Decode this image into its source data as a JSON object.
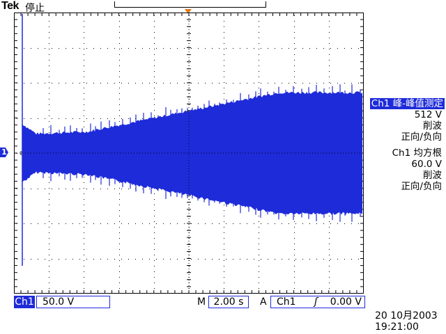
{
  "header": {
    "brand": "Tek",
    "status": "停止"
  },
  "measurements": [
    {
      "title": "Ch1 峰-峰值测定",
      "value": "512 V",
      "note1": "削波",
      "note2": "正向/负向"
    },
    {
      "title": "Ch1 均方根",
      "value": "60.0 V",
      "note1": "削波",
      "note2": "正向/负向"
    }
  ],
  "channel_marker": "1",
  "bottom_bar": {
    "channel": "Ch1",
    "volts_per_div": "50.0 V",
    "timebase_label": "M",
    "timebase": "2.00 s",
    "trigger_label": "A",
    "trigger_source": "Ch1",
    "trigger_slope": "ʃ",
    "trigger_level": "0.00 V"
  },
  "datetime": {
    "date": "20 10月2003",
    "time": "19:21:00"
  },
  "colors": {
    "trace": "#1e2bd9",
    "trigger_marker": "#e07a1c",
    "grid": "#000000"
  }
}
